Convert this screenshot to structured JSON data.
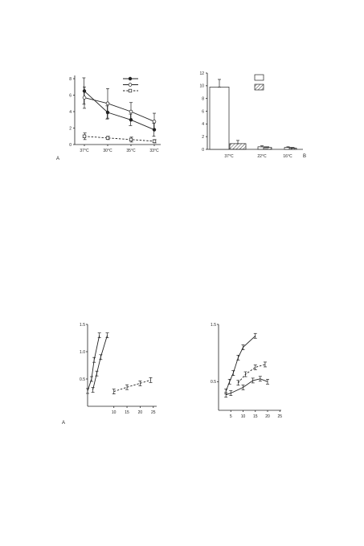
{
  "chart_data": [
    {
      "type": "line",
      "panel_label": "A",
      "categories": [
        "37°C",
        "30°C",
        "35°C",
        "33°C"
      ],
      "ylim": [
        0,
        8
      ],
      "yticks": [
        "0",
        "2",
        "4",
        "6",
        "8"
      ],
      "legend_placement": "top-right",
      "series": [
        {
          "marker": "filled-circle",
          "style": "solid",
          "values": [
            6.5,
            3.9,
            3.0,
            1.8
          ],
          "errors": [
            1.6,
            0.8,
            0.7,
            0.8
          ]
        },
        {
          "marker": "open-circle",
          "style": "solid",
          "values": [
            5.7,
            5.0,
            4.0,
            2.8
          ],
          "errors": [
            1.3,
            1.8,
            1.1,
            1.0
          ]
        },
        {
          "marker": "open-square",
          "style": "dash-dot",
          "values": [
            1.0,
            0.8,
            0.6,
            0.4
          ],
          "errors": [
            0.4,
            0.2,
            0.3,
            0.2
          ]
        }
      ]
    },
    {
      "type": "bar",
      "panel_label": "B",
      "categories": [
        "37°C",
        "22°C",
        "16°C"
      ],
      "ylim": [
        0,
        12
      ],
      "yticks": [
        "0",
        "2",
        "4",
        "6",
        "8",
        "10",
        "12"
      ],
      "legend_placement": "top-right",
      "series": [
        {
          "fill": "white",
          "values": [
            9.8,
            0.4,
            0.3
          ],
          "errors": [
            1.2,
            0.15,
            0.1
          ]
        },
        {
          "fill": "hatched",
          "values": [
            0.9,
            0.3,
            0.2
          ],
          "errors": [
            0.5,
            0.1,
            0.1
          ]
        }
      ]
    },
    {
      "type": "line",
      "panel_label": "A",
      "xlim": [
        0,
        25
      ],
      "ylim": [
        0,
        1.5
      ],
      "xticks": [
        "10",
        "15",
        "20",
        "25"
      ],
      "yticks": [
        "0.5",
        "1.0",
        "1.5"
      ],
      "series": [
        {
          "style": "solid",
          "x": [
            0,
            1.5,
            2.5,
            4.5
          ],
          "y": [
            0.28,
            0.5,
            0.85,
            1.3
          ]
        },
        {
          "style": "solid",
          "x": [
            2,
            3.5,
            5,
            7.5
          ],
          "y": [
            0.3,
            0.6,
            0.9,
            1.3
          ]
        },
        {
          "style": "dashed",
          "x": [
            10,
            15,
            20,
            24
          ],
          "y": [
            0.27,
            0.35,
            0.42,
            0.48
          ]
        }
      ]
    },
    {
      "type": "line",
      "xlim": [
        0,
        25
      ],
      "ylim": [
        0,
        1.5
      ],
      "xticks": [
        "5",
        "10",
        "15",
        "20",
        "25"
      ],
      "yticks": [
        "0.5",
        "1.5"
      ],
      "series": [
        {
          "style": "solid",
          "x": [
            3,
            4.5,
            6,
            8,
            10,
            15
          ],
          "y": [
            0.33,
            0.5,
            0.65,
            0.92,
            1.1,
            1.3
          ]
        },
        {
          "style": "dashed",
          "x": [
            8,
            11,
            15,
            19
          ],
          "y": [
            0.48,
            0.63,
            0.75,
            0.8
          ]
        },
        {
          "style": "solid",
          "x": [
            3,
            5,
            10,
            14,
            17,
            20
          ],
          "y": [
            0.27,
            0.3,
            0.4,
            0.52,
            0.55,
            0.5
          ]
        }
      ]
    }
  ]
}
